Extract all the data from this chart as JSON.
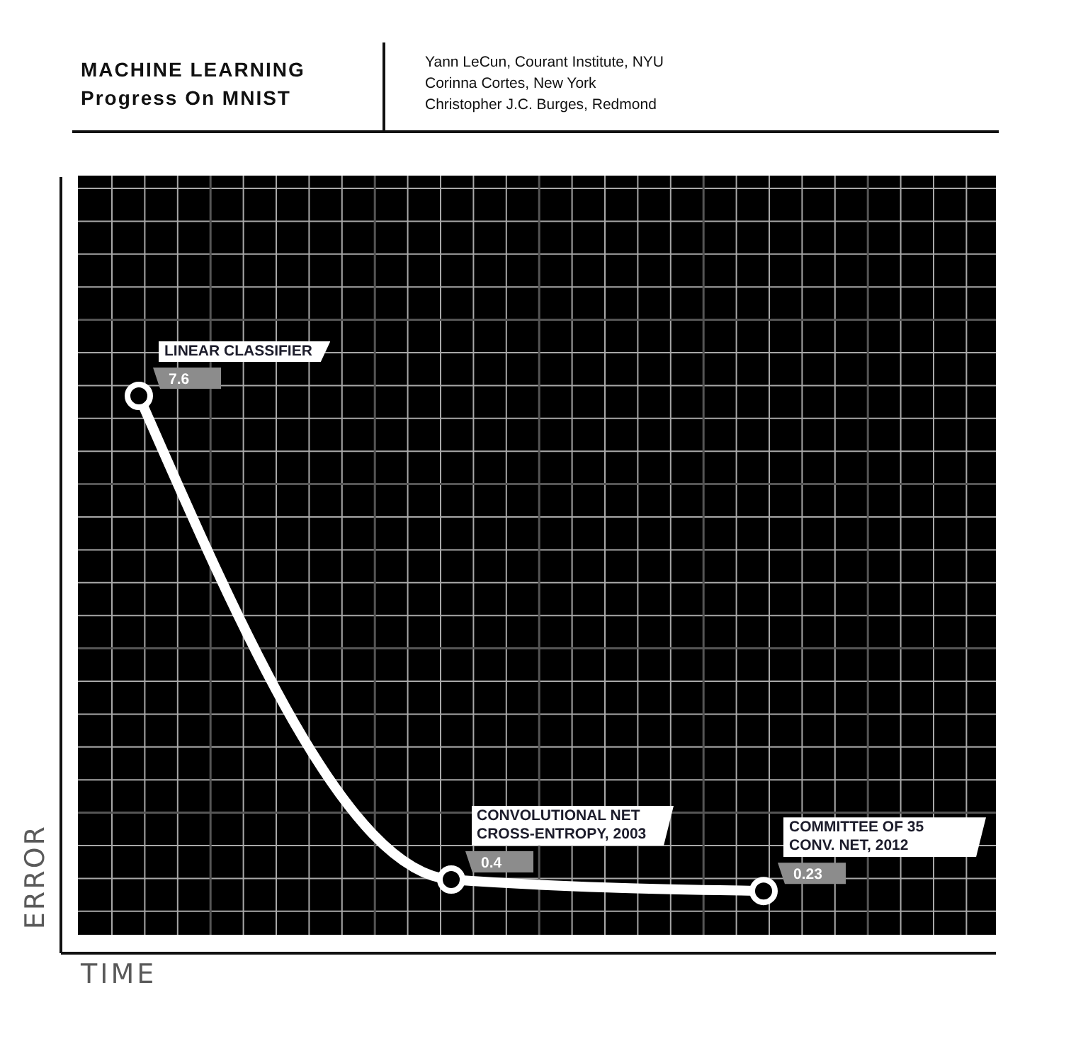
{
  "chart_data": {
    "type": "line",
    "title": "MACHINE LEARNING",
    "subtitle": "Progress On MNIST",
    "xlabel": "TIME",
    "ylabel": "ERROR",
    "annotations": [
      "Yann LeCun, Courant Institute, NYU",
      "Corinna Cortes, New York",
      "Christopher J.C. Burges, Redmond",
      "LINEAR CLASSIFIER",
      "CONVOLUTIONAL NET CROSS-ENTROPY, 2003",
      "COMMITTEE OF 35 CONV. NET, 2012"
    ],
    "categories": [
      null,
      null,
      null
    ],
    "series": [
      {
        "color": "#ffffff",
        "values": [
          7.6,
          0.4,
          0.23
        ]
      }
    ],
    "data_labels": true,
    "grid": true,
    "tick_labels": false,
    "marker": "circle",
    "line_style": "solid"
  }
}
